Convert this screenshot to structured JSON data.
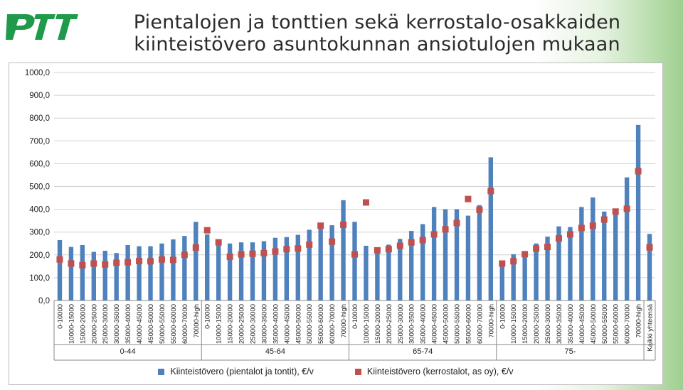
{
  "logo": {
    "text": "PTT",
    "color": "#1f9a4a"
  },
  "title": {
    "line1": "Pientalojen ja tonttien sekä kerrostalo-osakkaiden",
    "line2": "kiinteistövero asuntokunnan ansiotulojen mukaan"
  },
  "colors": {
    "bar": "#4f81bd",
    "marker": "#c0504d",
    "grid": "#d0d0d0"
  },
  "chart_data": {
    "type": "bar",
    "ylim": [
      0,
      1000
    ],
    "yticks": [
      "0,0",
      "100,0",
      "200,0",
      "300,0",
      "400,0",
      "500,0",
      "600,0",
      "700,0",
      "800,0",
      "900,0",
      "1000,0"
    ],
    "grid": true,
    "legend_position": "bottom",
    "groups": [
      {
        "label": "0-44",
        "categories": [
          "0-10000",
          "10000-15000",
          "15000-20000",
          "20000-25000",
          "25000-30000",
          "30000-35000",
          "35000-40000",
          "40000-45000",
          "45000-50000",
          "50000-55000",
          "55000-60000",
          "60000-70000",
          "70000-high"
        ]
      },
      {
        "label": "45-64",
        "categories": [
          "0-10000",
          "10000-15000",
          "15000-20000",
          "20000-25000",
          "25000-30000",
          "30000-35000",
          "35000-40000",
          "40000-45000",
          "45000-50000",
          "50000-55000",
          "55000-60000",
          "60000-70000",
          "70000-high"
        ]
      },
      {
        "label": "65-74",
        "categories": [
          "0-10000",
          "10000-15000",
          "15000-20000",
          "20000-25000",
          "25000-30000",
          "30000-35000",
          "35000-40000",
          "40000-45000",
          "45000-50000",
          "50000-55000",
          "55000-60000",
          "60000-70000",
          "70000-high"
        ]
      },
      {
        "label": "75-",
        "categories": [
          "0-10000",
          "10000-15000",
          "15000-20000",
          "20000-25000",
          "25000-30000",
          "30000-35000",
          "35000-40000",
          "40000-45000",
          "45000-50000",
          "50000-55000",
          "55000-60000",
          "60000-70000",
          "70000-high"
        ]
      },
      {
        "label": "",
        "categories": [
          "Kaikki yhteensä"
        ]
      }
    ],
    "series": [
      {
        "name": "Kiinteistövero (pientalot ja tontit), €/v",
        "kind": "bar",
        "values": [
          265,
          235,
          243,
          213,
          218,
          208,
          243,
          238,
          238,
          250,
          268,
          283,
          345,
          290,
          258,
          250,
          255,
          255,
          260,
          275,
          278,
          288,
          310,
          325,
          330,
          440,
          345,
          240,
          225,
          245,
          270,
          305,
          335,
          410,
          400,
          400,
          372,
          418,
          628,
          148,
          203,
          210,
          250,
          280,
          325,
          322,
          410,
          452,
          390,
          393,
          540,
          770,
          292
        ]
      },
      {
        "name": "Kiinteistövero (kerrostalot, as oy), €/v",
        "kind": "marker",
        "values": [
          180,
          162,
          155,
          162,
          158,
          165,
          168,
          173,
          172,
          180,
          178,
          200,
          232,
          308,
          255,
          192,
          202,
          205,
          208,
          215,
          225,
          228,
          245,
          328,
          258,
          332,
          202,
          430,
          220,
          225,
          240,
          255,
          265,
          290,
          312,
          340,
          445,
          398,
          480,
          162,
          172,
          203,
          228,
          235,
          272,
          290,
          318,
          328,
          355,
          390,
          402,
          567,
          233
        ]
      }
    ]
  }
}
